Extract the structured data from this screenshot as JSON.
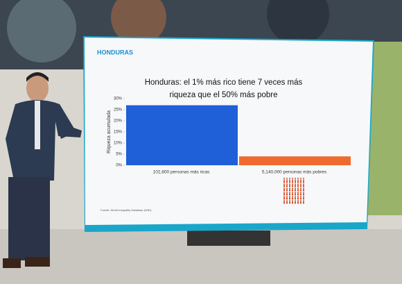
{
  "chart_data": {
    "type": "bar",
    "brand": "HONDURAS",
    "title": "Honduras: el 1% más rico tiene 7 veces más riqueza que el 50% más pobre",
    "y_label": "Riqueza acumulada",
    "categories": [
      "102,800 personas más ricas",
      "5,140,000 personas más pobres"
    ],
    "values": [
      27,
      4
    ],
    "colors": [
      "#1f5fd8",
      "#ef6a2e"
    ],
    "ylim": [
      0,
      30
    ],
    "yticks": [
      {
        "value": 0,
        "label": "0%"
      },
      {
        "value": 5,
        "label": "5%"
      },
      {
        "value": 10,
        "label": "10%"
      },
      {
        "value": 15,
        "label": "15%"
      },
      {
        "value": 20,
        "label": "20%"
      },
      {
        "value": 25,
        "label": "25%"
      },
      {
        "value": 30,
        "label": "30%"
      }
    ],
    "source": "Fuente: World Inequality Database (WID)."
  }
}
